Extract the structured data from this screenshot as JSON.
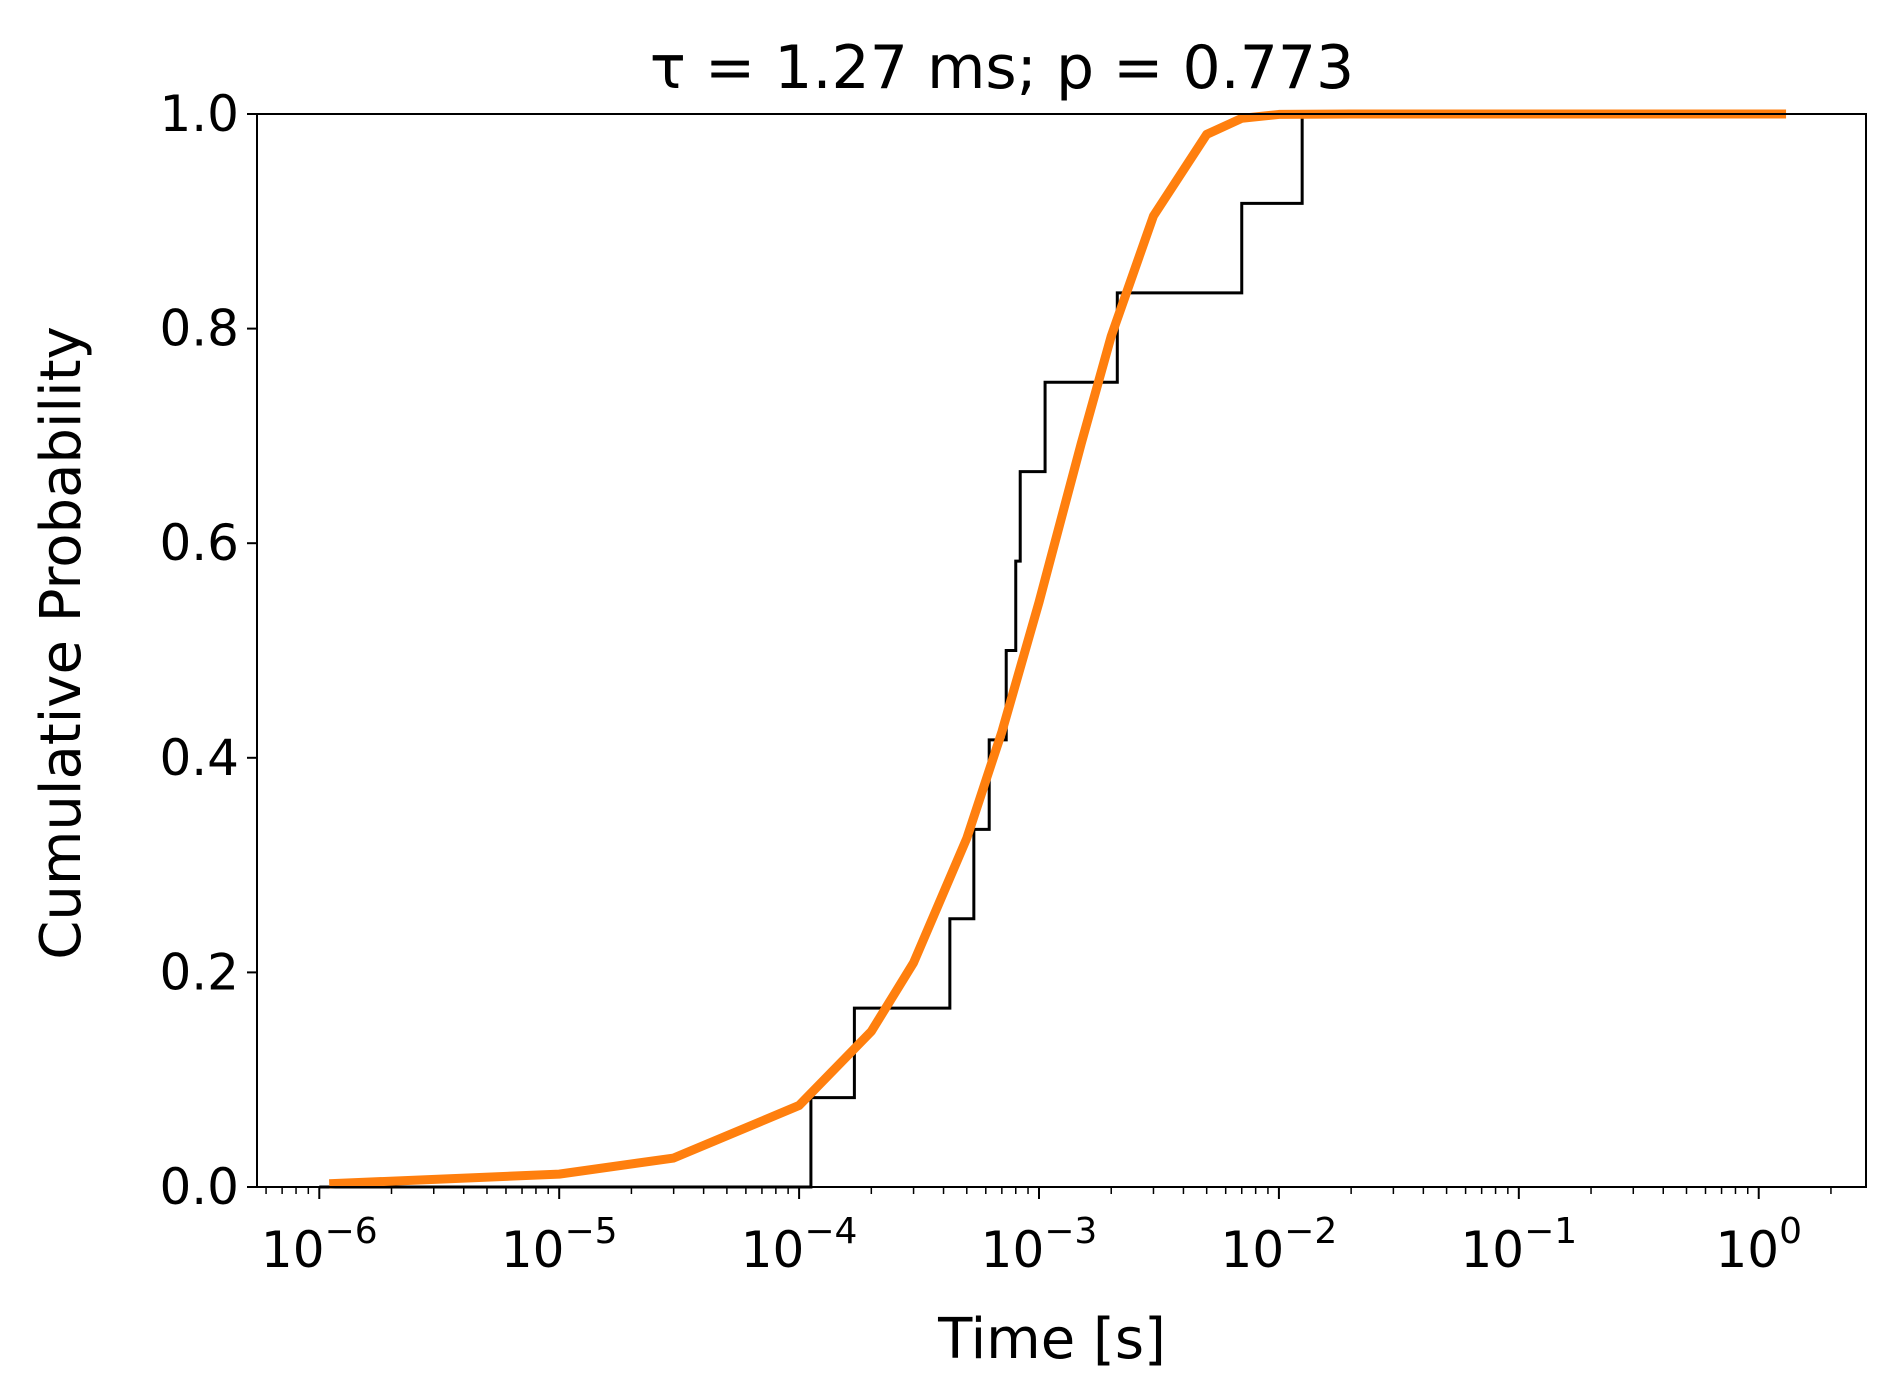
{
  "chart_data": {
    "type": "line",
    "title": "τ = 1.27 ms; p = 0.773",
    "xlabel": "Time [s]",
    "ylabel": "Cumulative Probability",
    "xscale": "log",
    "xlim": [
      5.5e-07,
      2.8
    ],
    "ylim": [
      0,
      1.0
    ],
    "grid": false,
    "legend": "none",
    "x_ticks": [
      {
        "value": 1e-06,
        "base": "10",
        "exp": "−6"
      },
      {
        "value": 1e-05,
        "base": "10",
        "exp": "−5"
      },
      {
        "value": 0.0001,
        "base": "10",
        "exp": "−4"
      },
      {
        "value": 0.001,
        "base": "10",
        "exp": "−3"
      },
      {
        "value": 0.01,
        "base": "10",
        "exp": "−2"
      },
      {
        "value": 0.1,
        "base": "10",
        "exp": "−1"
      },
      {
        "value": 1,
        "base": "10",
        "exp": "0"
      }
    ],
    "y_ticks": [
      {
        "value": 0.0,
        "label": "0.0"
      },
      {
        "value": 0.2,
        "label": "0.2"
      },
      {
        "value": 0.4,
        "label": "0.4"
      },
      {
        "value": 0.6,
        "label": "0.6"
      },
      {
        "value": 0.8,
        "label": "0.8"
      },
      {
        "value": 1.0,
        "label": "1.0"
      }
    ],
    "series": [
      {
        "kind": "step",
        "color": "#000000",
        "x_start": 1e-06,
        "steps": [
          {
            "x": 0.000112,
            "y": 0.0833
          },
          {
            "x": 0.00017,
            "y": 0.1667
          },
          {
            "x": 0.000425,
            "y": 0.25
          },
          {
            "x": 0.000535,
            "y": 0.3333
          },
          {
            "x": 0.00062,
            "y": 0.4167
          },
          {
            "x": 0.00073,
            "y": 0.5
          },
          {
            "x": 0.0008,
            "y": 0.5833
          },
          {
            "x": 0.000835,
            "y": 0.6667
          },
          {
            "x": 0.00106,
            "y": 0.75
          },
          {
            "x": 0.00212,
            "y": 0.8333
          },
          {
            "x": 0.007,
            "y": 0.9167
          },
          {
            "x": 0.0125,
            "y": 1.0
          }
        ]
      },
      {
        "kind": "curve",
        "color": "#ff7f0e",
        "x": [
          1.1e-06,
          1e-05,
          3e-05,
          0.0001,
          0.0002,
          0.0003,
          0.0005,
          0.0007,
          0.001,
          0.0015,
          0.002,
          0.003,
          0.005,
          0.007,
          0.01,
          0.02,
          1.0,
          1.3
        ],
        "y": [
          0.003,
          0.012,
          0.027,
          0.076,
          0.145,
          0.209,
          0.325,
          0.424,
          0.545,
          0.693,
          0.793,
          0.905,
          0.981,
          0.996,
          0.9996,
          1.0,
          1.0,
          1.0
        ]
      }
    ]
  }
}
